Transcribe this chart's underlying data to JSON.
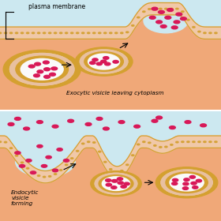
{
  "bg_color_top": "#cce8f0",
  "bg_color_bottom": "#cce8f0",
  "membrane_fill": "#f0c8a8",
  "membrane_border": "#d4a030",
  "cytoplasm_color": "#f0a878",
  "vesicle_interior": "#fafafa",
  "vesicle_mid": "#e8c0a0",
  "dot_color": "#d81858",
  "label_top": "plasma membrane",
  "label_exo": "Exocytic visicle leaving cytoplasm",
  "label_endo": "Endocytic\nvisicle\nforming"
}
